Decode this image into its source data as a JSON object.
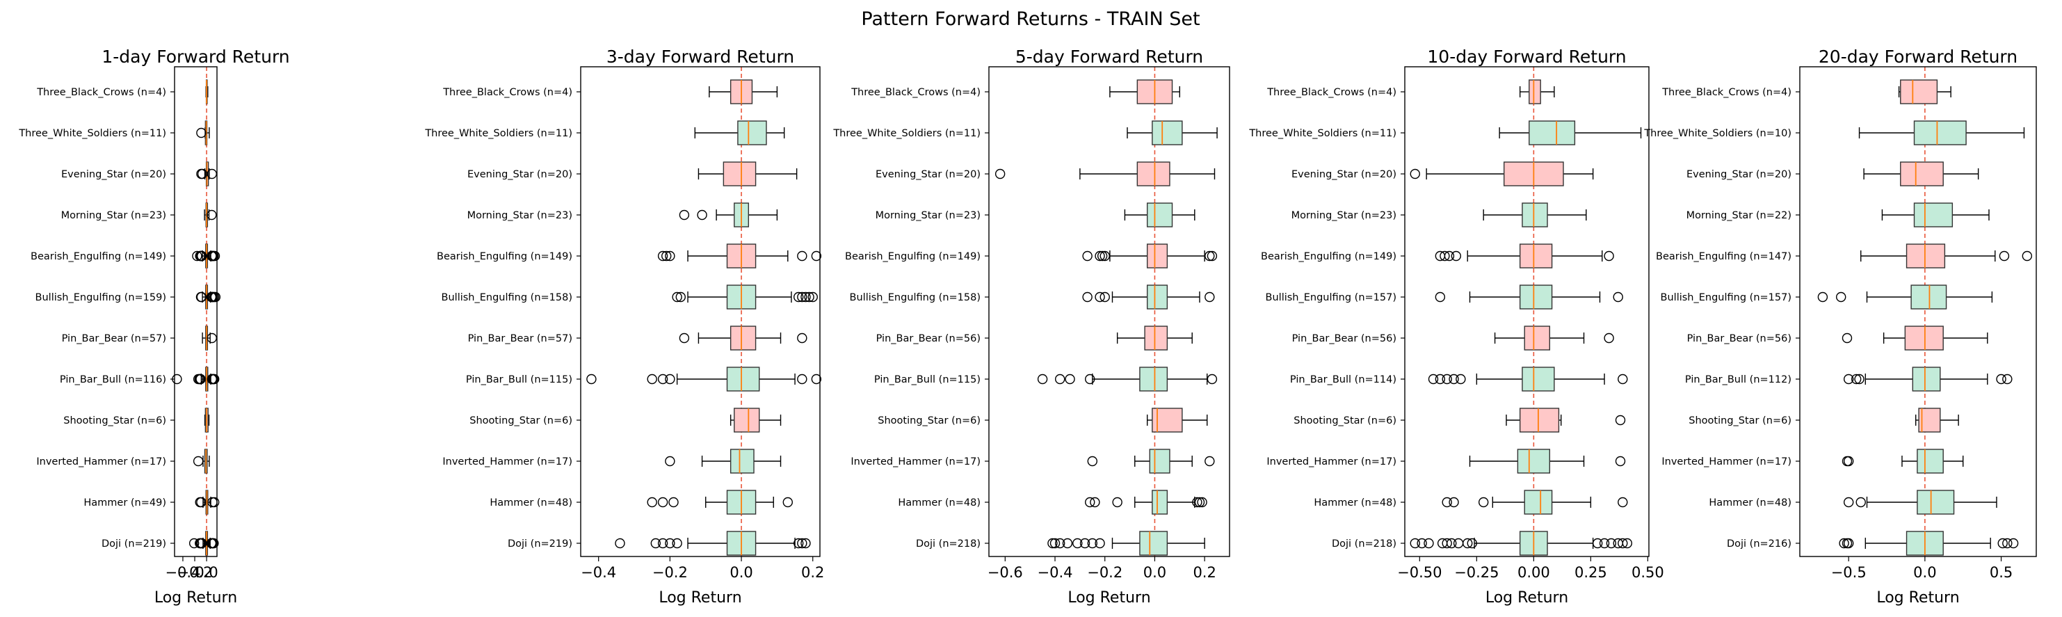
{
  "figure": {
    "title": "Pattern Forward Returns - TRAIN Set",
    "colors": {
      "bullish_fill": "#c3ebd9",
      "bearish_fill": "#ffc8c8",
      "median": "#ff7f0e",
      "zero_line": "#e8563a",
      "box_edge": "#333333"
    }
  },
  "chart_data": [
    {
      "type": "boxplot",
      "title": "1-day Forward Return",
      "xlabel": "Log Return",
      "xlim": [
        -0.54,
        0.175
      ],
      "xticks": [
        -0.4,
        -0.2,
        0.0
      ],
      "xtick_labels": [
        "−0.4",
        "−0.2",
        "0.0"
      ],
      "categories": [
        {
          "label": "Three_Black_Crows (n=4)",
          "kind": "bear",
          "wlo": -0.01,
          "q1": -0.005,
          "med": 0.0,
          "q3": 0.01,
          "whi": 0.02,
          "outliers": []
        },
        {
          "label": "Three_White_Soldiers (n=11)",
          "kind": "bull",
          "wlo": -0.025,
          "q1": -0.02,
          "med": -0.005,
          "q3": 0.005,
          "whi": 0.045,
          "outliers": [
            -0.09
          ]
        },
        {
          "label": "Evening_Star (n=20)",
          "kind": "bear",
          "wlo": -0.03,
          "q1": -0.005,
          "med": 0.005,
          "q3": 0.03,
          "whi": 0.045,
          "outliers": [
            -0.09,
            -0.07,
            0.09
          ]
        },
        {
          "label": "Morning_Star (n=23)",
          "kind": "bull",
          "wlo": -0.035,
          "q1": -0.01,
          "med": 0.0,
          "q3": 0.015,
          "whi": 0.04,
          "outliers": [
            0.085
          ]
        },
        {
          "label": "Bearish_Engulfing (n=149)",
          "kind": "bear",
          "wlo": -0.07,
          "q1": -0.015,
          "med": 0.0,
          "q3": 0.015,
          "whi": 0.07,
          "outliers": [
            -0.16,
            -0.11,
            -0.1,
            -0.095,
            -0.09,
            -0.085,
            -0.08,
            0.085,
            0.09,
            0.095,
            0.1,
            0.11,
            0.12,
            0.14
          ]
        },
        {
          "label": "Bullish_Engulfing (n=159)",
          "kind": "bull",
          "wlo": -0.07,
          "q1": -0.015,
          "med": 0.0,
          "q3": 0.015,
          "whi": 0.065,
          "outliers": [
            -0.095,
            -0.085,
            0.08,
            0.09,
            0.1,
            0.11,
            0.13,
            0.15
          ]
        },
        {
          "label": "Pin_Bar_Bear (n=57)",
          "kind": "bear",
          "wlo": -0.07,
          "q1": -0.015,
          "med": 0.0,
          "q3": 0.015,
          "whi": 0.06,
          "outliers": [
            0.09
          ]
        },
        {
          "label": "Pin_Bar_Bull (n=116)",
          "kind": "bull",
          "wlo": -0.09,
          "q1": -0.015,
          "med": 0.0,
          "q3": 0.02,
          "whi": 0.07,
          "outliers": [
            -0.5,
            -0.14,
            -0.12,
            -0.11,
            -0.1,
            0.09,
            0.1,
            0.11,
            0.12,
            0.13
          ]
        },
        {
          "label": "Shooting_Star (n=6)",
          "kind": "bear",
          "wlo": -0.03,
          "q1": -0.02,
          "med": 0.0,
          "q3": 0.025,
          "whi": 0.04,
          "outliers": []
        },
        {
          "label": "Inverted_Hammer (n=17)",
          "kind": "bull",
          "wlo": -0.06,
          "q1": -0.03,
          "med": -0.01,
          "q3": 0.01,
          "whi": 0.045,
          "outliers": [
            -0.14
          ]
        },
        {
          "label": "Hammer (n=49)",
          "kind": "bull",
          "wlo": -0.06,
          "q1": -0.01,
          "med": 0.005,
          "q3": 0.02,
          "whi": 0.07,
          "outliers": [
            -0.11,
            -0.09,
            0.1,
            0.13
          ]
        },
        {
          "label": "Doji (n=219)",
          "kind": "bull",
          "wlo": -0.06,
          "q1": -0.015,
          "med": 0.0,
          "q3": 0.015,
          "whi": 0.06,
          "outliers": [
            -0.21,
            -0.115,
            -0.1,
            -0.09,
            -0.08,
            0.08,
            0.09,
            0.1,
            0.11,
            0.12
          ]
        }
      ]
    },
    {
      "type": "boxplot",
      "title": "3-day Forward Return",
      "xlabel": "Log Return",
      "xlim": [
        -0.45,
        0.22
      ],
      "xticks": [
        -0.4,
        -0.2,
        0.0,
        0.2
      ],
      "xtick_labels": [
        "−0.4",
        "−0.2",
        "0.0",
        "0.2"
      ],
      "categories": [
        {
          "label": "Three_Black_Crows (n=4)",
          "kind": "bear",
          "wlo": -0.09,
          "q1": -0.03,
          "med": 0.0,
          "q3": 0.03,
          "whi": 0.1,
          "outliers": []
        },
        {
          "label": "Three_White_Soldiers (n=11)",
          "kind": "bull",
          "wlo": -0.13,
          "q1": -0.01,
          "med": 0.02,
          "q3": 0.07,
          "whi": 0.12,
          "outliers": []
        },
        {
          "label": "Evening_Star (n=20)",
          "kind": "bear",
          "wlo": -0.12,
          "q1": -0.05,
          "med": 0.0,
          "q3": 0.04,
          "whi": 0.155,
          "outliers": []
        },
        {
          "label": "Morning_Star (n=23)",
          "kind": "bull",
          "wlo": -0.07,
          "q1": -0.02,
          "med": 0.0,
          "q3": 0.02,
          "whi": 0.1,
          "outliers": [
            -0.16,
            -0.11
          ]
        },
        {
          "label": "Bearish_Engulfing (n=149)",
          "kind": "bear",
          "wlo": -0.15,
          "q1": -0.04,
          "med": 0.0,
          "q3": 0.04,
          "whi": 0.13,
          "outliers": [
            -0.22,
            -0.21,
            -0.2,
            0.17,
            0.21
          ]
        },
        {
          "label": "Bullish_Engulfing (n=158)",
          "kind": "bull",
          "wlo": -0.15,
          "q1": -0.04,
          "med": 0.0,
          "q3": 0.04,
          "whi": 0.14,
          "outliers": [
            -0.18,
            -0.17,
            0.16,
            0.17,
            0.18,
            0.19,
            0.2
          ]
        },
        {
          "label": "Pin_Bar_Bear (n=57)",
          "kind": "bear",
          "wlo": -0.12,
          "q1": -0.03,
          "med": 0.0,
          "q3": 0.04,
          "whi": 0.11,
          "outliers": [
            -0.16,
            0.17
          ]
        },
        {
          "label": "Pin_Bar_Bull (n=115)",
          "kind": "bull",
          "wlo": -0.18,
          "q1": -0.04,
          "med": 0.0,
          "q3": 0.05,
          "whi": 0.15,
          "outliers": [
            -0.42,
            -0.25,
            -0.22,
            -0.2,
            0.17,
            0.21
          ]
        },
        {
          "label": "Shooting_Star (n=6)",
          "kind": "bear",
          "wlo": -0.03,
          "q1": -0.02,
          "med": 0.02,
          "q3": 0.05,
          "whi": 0.11,
          "outliers": []
        },
        {
          "label": "Inverted_Hammer (n=17)",
          "kind": "bull",
          "wlo": -0.11,
          "q1": -0.03,
          "med": -0.005,
          "q3": 0.035,
          "whi": 0.11,
          "outliers": [
            -0.2
          ]
        },
        {
          "label": "Hammer (n=48)",
          "kind": "bull",
          "wlo": -0.1,
          "q1": -0.04,
          "med": 0.0,
          "q3": 0.04,
          "whi": 0.09,
          "outliers": [
            -0.25,
            -0.22,
            -0.19,
            0.13
          ]
        },
        {
          "label": "Doji (n=219)",
          "kind": "bull",
          "wlo": -0.15,
          "q1": -0.04,
          "med": 0.0,
          "q3": 0.04,
          "whi": 0.15,
          "outliers": [
            -0.34,
            -0.24,
            -0.22,
            -0.2,
            -0.18,
            0.16,
            0.17,
            0.18
          ]
        }
      ]
    },
    {
      "type": "boxplot",
      "title": "5-day Forward Return",
      "xlabel": "Log Return",
      "xlim": [
        -0.665,
        0.3
      ],
      "xticks": [
        -0.6,
        -0.4,
        -0.2,
        0.0,
        0.2
      ],
      "xtick_labels": [
        "−0.6",
        "−0.4",
        "−0.2",
        "0.0",
        "0.2"
      ],
      "categories": [
        {
          "label": "Three_Black_Crows (n=4)",
          "kind": "bear",
          "wlo": -0.18,
          "q1": -0.07,
          "med": 0.0,
          "q3": 0.07,
          "whi": 0.1,
          "outliers": []
        },
        {
          "label": "Three_White_Soldiers (n=11)",
          "kind": "bull",
          "wlo": -0.11,
          "q1": -0.01,
          "med": 0.03,
          "q3": 0.11,
          "whi": 0.25,
          "outliers": []
        },
        {
          "label": "Evening_Star (n=20)",
          "kind": "bear",
          "wlo": -0.3,
          "q1": -0.07,
          "med": 0.0,
          "q3": 0.06,
          "whi": 0.24,
          "outliers": [
            -0.62
          ]
        },
        {
          "label": "Morning_Star (n=23)",
          "kind": "bull",
          "wlo": -0.12,
          "q1": -0.03,
          "med": 0.0,
          "q3": 0.07,
          "whi": 0.16,
          "outliers": []
        },
        {
          "label": "Bearish_Engulfing (n=149)",
          "kind": "bear",
          "wlo": -0.18,
          "q1": -0.03,
          "med": 0.0,
          "q3": 0.05,
          "whi": 0.2,
          "outliers": [
            -0.27,
            -0.22,
            -0.21,
            -0.2,
            0.22,
            0.23
          ]
        },
        {
          "label": "Bullish_Engulfing (n=158)",
          "kind": "bull",
          "wlo": -0.17,
          "q1": -0.03,
          "med": 0.0,
          "q3": 0.05,
          "whi": 0.18,
          "outliers": [
            -0.27,
            -0.22,
            -0.2,
            0.22
          ]
        },
        {
          "label": "Pin_Bar_Bear (n=56)",
          "kind": "bear",
          "wlo": -0.15,
          "q1": -0.04,
          "med": 0.0,
          "q3": 0.05,
          "whi": 0.15,
          "outliers": []
        },
        {
          "label": "Pin_Bar_Bull (n=115)",
          "kind": "bull",
          "wlo": -0.25,
          "q1": -0.06,
          "med": 0.0,
          "q3": 0.05,
          "whi": 0.21,
          "outliers": [
            -0.45,
            -0.38,
            -0.34,
            -0.26,
            0.23
          ]
        },
        {
          "label": "Shooting_Star (n=6)",
          "kind": "bear",
          "wlo": -0.03,
          "q1": -0.01,
          "med": 0.01,
          "q3": 0.11,
          "whi": 0.21,
          "outliers": []
        },
        {
          "label": "Inverted_Hammer (n=17)",
          "kind": "bull",
          "wlo": -0.08,
          "q1": -0.02,
          "med": 0.0,
          "q3": 0.06,
          "whi": 0.15,
          "outliers": [
            -0.25,
            0.22
          ]
        },
        {
          "label": "Hammer (n=48)",
          "kind": "bull",
          "wlo": -0.08,
          "q1": -0.01,
          "med": 0.01,
          "q3": 0.05,
          "whi": 0.16,
          "outliers": [
            -0.26,
            -0.24,
            -0.15,
            0.17,
            0.18,
            0.19
          ]
        },
        {
          "label": "Doji (n=218)",
          "kind": "bull",
          "wlo": -0.17,
          "q1": -0.06,
          "med": -0.02,
          "q3": 0.05,
          "whi": 0.2,
          "outliers": [
            -0.41,
            -0.4,
            -0.38,
            -0.35,
            -0.31,
            -0.28,
            -0.25,
            -0.22
          ]
        }
      ]
    },
    {
      "type": "boxplot",
      "title": "10-day Forward Return",
      "xlabel": "Log Return",
      "xlim": [
        -0.565,
        0.505
      ],
      "xticks": [
        -0.5,
        -0.25,
        0.0,
        0.25,
        0.5
      ],
      "xtick_labels": [
        "−0.50",
        "−0.25",
        "0.00",
        "0.25",
        "0.50"
      ],
      "categories": [
        {
          "label": "Three_Black_Crows (n=4)",
          "kind": "bear",
          "wlo": -0.06,
          "q1": -0.02,
          "med": 0.0,
          "q3": 0.03,
          "whi": 0.09,
          "outliers": []
        },
        {
          "label": "Three_White_Soldiers (n=11)",
          "kind": "bull",
          "wlo": -0.15,
          "q1": -0.02,
          "med": 0.1,
          "q3": 0.18,
          "whi": 0.47,
          "outliers": []
        },
        {
          "label": "Evening_Star (n=20)",
          "kind": "bear",
          "wlo": -0.47,
          "q1": -0.13,
          "med": 0.0,
          "q3": 0.13,
          "whi": 0.26,
          "outliers": [
            -0.52
          ]
        },
        {
          "label": "Morning_Star (n=23)",
          "kind": "bull",
          "wlo": -0.22,
          "q1": -0.05,
          "med": 0.0,
          "q3": 0.06,
          "whi": 0.23,
          "outliers": []
        },
        {
          "label": "Bearish_Engulfing (n=149)",
          "kind": "bear",
          "wlo": -0.29,
          "q1": -0.06,
          "med": 0.0,
          "q3": 0.08,
          "whi": 0.3,
          "outliers": [
            -0.41,
            -0.39,
            -0.37,
            -0.34,
            0.33
          ]
        },
        {
          "label": "Bullish_Engulfing (n=157)",
          "kind": "bull",
          "wlo": -0.28,
          "q1": -0.06,
          "med": 0.0,
          "q3": 0.08,
          "whi": 0.29,
          "outliers": [
            -0.41,
            0.37
          ]
        },
        {
          "label": "Pin_Bar_Bear (n=56)",
          "kind": "bear",
          "wlo": -0.17,
          "q1": -0.04,
          "med": 0.0,
          "q3": 0.07,
          "whi": 0.22,
          "outliers": [
            0.33
          ]
        },
        {
          "label": "Pin_Bar_Bull (n=114)",
          "kind": "bull",
          "wlo": -0.25,
          "q1": -0.05,
          "med": 0.0,
          "q3": 0.09,
          "whi": 0.31,
          "outliers": [
            -0.44,
            -0.41,
            -0.38,
            -0.35,
            -0.32,
            0.39
          ]
        },
        {
          "label": "Shooting_Star (n=6)",
          "kind": "bear",
          "wlo": -0.12,
          "q1": -0.06,
          "med": 0.02,
          "q3": 0.11,
          "whi": 0.12,
          "outliers": [
            0.38
          ]
        },
        {
          "label": "Inverted_Hammer (n=17)",
          "kind": "bull",
          "wlo": -0.28,
          "q1": -0.07,
          "med": -0.02,
          "q3": 0.07,
          "whi": 0.22,
          "outliers": [
            0.38
          ]
        },
        {
          "label": "Hammer (n=48)",
          "kind": "bull",
          "wlo": -0.18,
          "q1": -0.04,
          "med": 0.03,
          "q3": 0.08,
          "whi": 0.25,
          "outliers": [
            -0.38,
            -0.35,
            -0.22,
            0.39
          ]
        },
        {
          "label": "Doji (n=218)",
          "kind": "bull",
          "wlo": -0.26,
          "q1": -0.06,
          "med": 0.0,
          "q3": 0.06,
          "whi": 0.26,
          "outliers": [
            -0.52,
            -0.49,
            -0.46,
            -0.4,
            -0.38,
            -0.36,
            -0.33,
            -0.29,
            -0.27,
            0.28,
            0.31,
            0.34,
            0.37,
            0.39,
            0.41
          ]
        }
      ]
    },
    {
      "type": "boxplot",
      "title": "20-day Forward Return",
      "xlabel": "Log Return",
      "xlim": [
        -0.82,
        0.73
      ],
      "xticks": [
        -0.5,
        0.0,
        0.5
      ],
      "xtick_labels": [
        "−0.5",
        "0.0",
        "0.5"
      ],
      "categories": [
        {
          "label": "Three_Black_Crows (n=4)",
          "kind": "bear",
          "wlo": -0.17,
          "q1": -0.16,
          "med": -0.08,
          "q3": 0.08,
          "whi": 0.17,
          "outliers": []
        },
        {
          "label": "Three_White_Soldiers (n=10)",
          "kind": "bull",
          "wlo": -0.43,
          "q1": -0.07,
          "med": 0.08,
          "q3": 0.27,
          "whi": 0.65,
          "outliers": []
        },
        {
          "label": "Evening_Star (n=20)",
          "kind": "bear",
          "wlo": -0.4,
          "q1": -0.16,
          "med": -0.06,
          "q3": 0.12,
          "whi": 0.35,
          "outliers": []
        },
        {
          "label": "Morning_Star (n=22)",
          "kind": "bull",
          "wlo": -0.28,
          "q1": -0.07,
          "med": 0.0,
          "q3": 0.18,
          "whi": 0.42,
          "outliers": []
        },
        {
          "label": "Bearish_Engulfing (n=147)",
          "kind": "bear",
          "wlo": -0.42,
          "q1": -0.12,
          "med": 0.0,
          "q3": 0.13,
          "whi": 0.46,
          "outliers": [
            0.52,
            0.67
          ]
        },
        {
          "label": "Bullish_Engulfing (n=157)",
          "kind": "bull",
          "wlo": -0.38,
          "q1": -0.09,
          "med": 0.03,
          "q3": 0.14,
          "whi": 0.44,
          "outliers": [
            -0.67,
            -0.55
          ]
        },
        {
          "label": "Pin_Bar_Bear (n=56)",
          "kind": "bear",
          "wlo": -0.27,
          "q1": -0.13,
          "med": 0.0,
          "q3": 0.12,
          "whi": 0.41,
          "outliers": [
            -0.51
          ]
        },
        {
          "label": "Pin_Bar_Bull (n=112)",
          "kind": "bull",
          "wlo": -0.39,
          "q1": -0.08,
          "med": 0.0,
          "q3": 0.1,
          "whi": 0.41,
          "outliers": [
            -0.5,
            -0.45,
            -0.43,
            0.5,
            0.54
          ]
        },
        {
          "label": "Shooting_Star (n=6)",
          "kind": "bear",
          "wlo": -0.06,
          "q1": -0.04,
          "med": -0.02,
          "q3": 0.1,
          "whi": 0.22,
          "outliers": []
        },
        {
          "label": "Inverted_Hammer (n=17)",
          "kind": "bull",
          "wlo": -0.15,
          "q1": -0.05,
          "med": 0.0,
          "q3": 0.12,
          "whi": 0.25,
          "outliers": [
            -0.51,
            -0.5
          ]
        },
        {
          "label": "Hammer (n=48)",
          "kind": "bull",
          "wlo": -0.38,
          "q1": -0.05,
          "med": 0.04,
          "q3": 0.19,
          "whi": 0.47,
          "outliers": [
            -0.5,
            -0.42
          ]
        },
        {
          "label": "Doji (n=216)",
          "kind": "bull",
          "wlo": -0.39,
          "q1": -0.12,
          "med": 0.0,
          "q3": 0.12,
          "whi": 0.43,
          "outliers": [
            -0.53,
            -0.51,
            -0.5,
            0.51,
            0.54,
            0.58
          ]
        }
      ]
    }
  ]
}
